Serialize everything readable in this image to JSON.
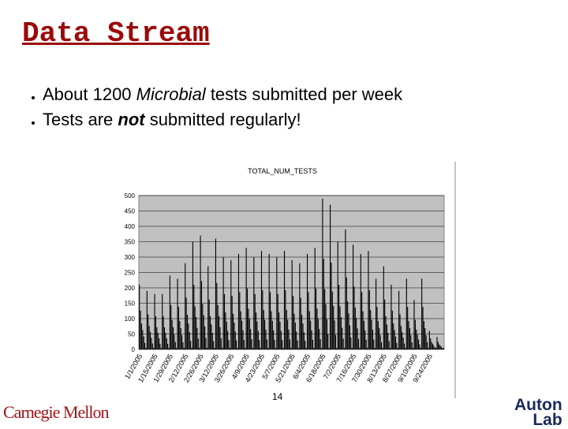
{
  "header": {
    "title": "Data Stream"
  },
  "bullets": [
    [
      "About 1200 ",
      "Microbial",
      " tests submitted per week"
    ],
    [
      "Tests are ",
      "not",
      " submitted regularly!"
    ]
  ],
  "footer": {
    "page": "14",
    "left_logo": "Carnegie Mellon",
    "right_logo": [
      "Auton",
      "Lab"
    ]
  },
  "chart_data": {
    "type": "bar",
    "title": "TOTAL_NUM_TESTS",
    "color": "#000000",
    "background": "#c0c0c0",
    "grid": true,
    "ylim": [
      0,
      500
    ],
    "yticks": [
      0,
      50,
      100,
      150,
      200,
      250,
      300,
      350,
      400,
      450,
      500
    ],
    "categories": [
      "1/1/2005",
      null,
      null,
      null,
      null,
      null,
      null,
      null,
      null,
      null,
      null,
      null,
      null,
      null,
      "1/15/2005",
      null,
      null,
      null,
      null,
      null,
      null,
      null,
      null,
      null,
      null,
      null,
      null,
      null,
      "1/29/2005",
      null,
      null,
      null,
      null,
      null,
      null,
      null,
      null,
      null,
      null,
      null,
      null,
      null,
      "2/12/2005",
      null,
      null,
      null,
      null,
      null,
      null,
      null,
      null,
      null,
      null,
      null,
      null,
      null,
      "2/26/2005",
      null,
      null,
      null,
      null,
      null,
      null,
      null,
      null,
      null,
      null,
      null,
      null,
      null,
      "3/12/2005",
      null,
      null,
      null,
      null,
      null,
      null,
      null,
      null,
      null,
      null,
      null,
      null,
      null,
      "3/26/2005",
      null,
      null,
      null,
      null,
      null,
      null,
      null,
      null,
      null,
      null,
      null,
      null,
      null,
      "4/9/2005",
      null,
      null,
      null,
      null,
      null,
      null,
      null,
      null,
      null,
      null,
      null,
      null,
      null,
      "4/23/2005",
      null,
      null,
      null,
      null,
      null,
      null,
      null,
      null,
      null,
      null,
      null,
      null,
      null,
      "5/7/2005",
      null,
      null,
      null,
      null,
      null,
      null,
      null,
      null,
      null,
      null,
      null,
      null,
      null,
      "5/21/2005",
      null,
      null,
      null,
      null,
      null,
      null,
      null,
      null,
      null,
      null,
      null,
      null,
      null,
      "6/4/2005",
      null,
      null,
      null,
      null,
      null,
      null,
      null,
      null,
      null,
      null,
      null,
      null,
      null,
      "6/18/2005",
      null,
      null,
      null,
      null,
      null,
      null,
      null,
      null,
      null,
      null,
      null,
      null,
      null,
      "7/2/2005",
      null,
      null,
      null,
      null,
      null,
      null,
      null,
      null,
      null,
      null,
      null,
      null,
      null,
      "7/16/2005",
      null,
      null,
      null,
      null,
      null,
      null,
      null,
      null,
      null,
      null,
      null,
      null,
      null,
      "7/30/2005",
      null,
      null,
      null,
      null,
      null,
      null,
      null,
      null,
      null,
      null,
      null,
      null,
      null,
      "8/13/2005",
      null,
      null,
      null,
      null,
      null,
      null,
      null,
      null,
      null,
      null,
      null,
      null,
      null,
      "8/27/2005",
      null,
      null,
      null,
      null,
      null,
      null,
      null,
      null,
      null,
      null,
      null,
      null,
      null,
      "9/10/2005",
      null,
      null,
      null,
      null,
      null,
      null,
      null,
      null,
      null,
      null,
      null,
      null,
      null,
      "9/24/2005",
      null,
      null,
      null,
      null,
      null,
      null,
      null,
      null,
      null,
      null,
      null,
      null,
      null
    ],
    "values": [
      210,
      126,
      84,
      63,
      42,
      21,
      5,
      190,
      114,
      76,
      57,
      38,
      19,
      5,
      180,
      108,
      72,
      54,
      36,
      18,
      5,
      180,
      108,
      72,
      54,
      36,
      18,
      5,
      240,
      144,
      96,
      72,
      48,
      24,
      5,
      230,
      138,
      92,
      69,
      46,
      23,
      5,
      280,
      168,
      112,
      84,
      56,
      28,
      5,
      350,
      210,
      140,
      105,
      70,
      35,
      5,
      370,
      222,
      148,
      111,
      74,
      37,
      5,
      270,
      162,
      108,
      81,
      54,
      27,
      5,
      360,
      216,
      144,
      108,
      72,
      36,
      5,
      300,
      180,
      120,
      90,
      60,
      30,
      5,
      290,
      174,
      116,
      87,
      58,
      29,
      5,
      310,
      186,
      124,
      93,
      62,
      31,
      5,
      330,
      198,
      132,
      99,
      66,
      33,
      5,
      300,
      180,
      120,
      90,
      60,
      30,
      5,
      320,
      192,
      128,
      96,
      64,
      32,
      5,
      310,
      186,
      124,
      93,
      62,
      31,
      5,
      300,
      180,
      120,
      90,
      60,
      30,
      5,
      320,
      192,
      128,
      96,
      64,
      32,
      5,
      290,
      174,
      116,
      87,
      58,
      29,
      5,
      280,
      168,
      112,
      84,
      56,
      28,
      5,
      310,
      186,
      124,
      93,
      62,
      31,
      5,
      330,
      198,
      132,
      99,
      66,
      33,
      5,
      490,
      294,
      196,
      147,
      98,
      49,
      5,
      470,
      282,
      188,
      141,
      94,
      47,
      5,
      350,
      210,
      140,
      105,
      70,
      35,
      5,
      390,
      234,
      156,
      117,
      78,
      39,
      5,
      340,
      204,
      136,
      102,
      68,
      34,
      5,
      310,
      186,
      124,
      93,
      62,
      31,
      5,
      320,
      192,
      128,
      96,
      64,
      32,
      5,
      230,
      138,
      92,
      69,
      46,
      23,
      5,
      270,
      162,
      108,
      81,
      54,
      27,
      5,
      210,
      126,
      84,
      63,
      42,
      21,
      5,
      190,
      114,
      76,
      57,
      38,
      19,
      5,
      230,
      138,
      92,
      69,
      46,
      23,
      5,
      160,
      96,
      64,
      48,
      32,
      16,
      5,
      230,
      138,
      92,
      69,
      46,
      23,
      5,
      60,
      36,
      24,
      18,
      12,
      6,
      5,
      40,
      24,
      16,
      12,
      8,
      4,
      5
    ]
  }
}
